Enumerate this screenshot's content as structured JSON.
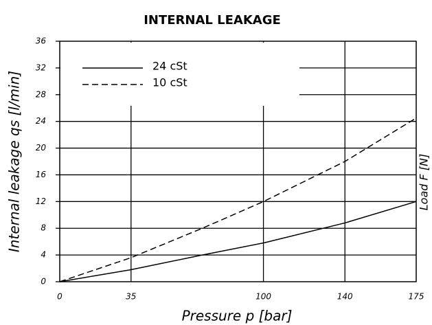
{
  "chart_data": {
    "type": "line",
    "title": "INTERNAL LEAKAGE",
    "x_label": "Pressure p [bar]",
    "y_label": "Internal leakage qs [l/min]",
    "y2_label": "Load F [N]",
    "x": [
      0,
      35,
      70,
      100,
      140,
      175
    ],
    "series": [
      {
        "name": "24 cSt",
        "color": "#000000",
        "dash": "solid",
        "values": [
          0,
          1.8,
          4,
          5.8,
          8.8,
          12
        ]
      },
      {
        "name": "10 cSt",
        "color": "#000000",
        "dash": "dashed",
        "values": [
          0,
          3.6,
          8,
          12,
          18,
          24.5
        ]
      }
    ],
    "xlim": [
      0,
      175
    ],
    "xticks": [
      0,
      35,
      100,
      140,
      175
    ],
    "ylim": [
      0,
      36
    ],
    "yticks": [
      0,
      4,
      8,
      12,
      16,
      20,
      24,
      28,
      32,
      36
    ],
    "grid": true,
    "legend": "upper left"
  }
}
